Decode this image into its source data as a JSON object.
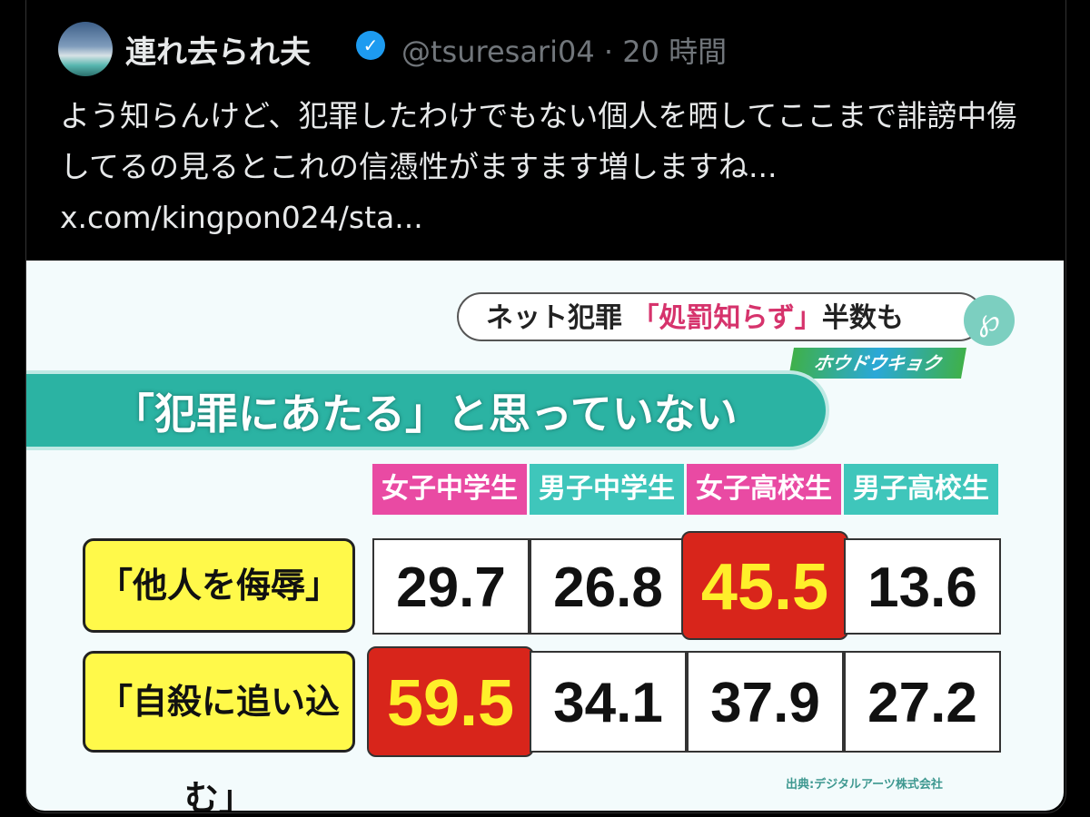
{
  "tweet": {
    "display_name": "連れ去られ夫",
    "verified_icon": "verified-badge-icon",
    "handle": "@tsuresari04",
    "separator": "·",
    "time": "20 時間",
    "text": "よう知らんけど、犯罪したわけでもない個人を晒してここまで誹謗中傷してるの見るとこれの信憑性がますます増しますね... x.com/kingpon024/sta..."
  },
  "image": {
    "headline_prefix": "ネット犯罪",
    "headline_highlight": "「処罰知らず」",
    "headline_suffix": "半数も",
    "logo_glyph": "℘",
    "program_name": "ホウドウキョク",
    "banner": "「犯罪にあたる」と思っていない",
    "columns": [
      "女子中学生",
      "男子中学生",
      "女子高校生",
      "男子高校生"
    ],
    "rows": [
      {
        "label": "「他人を侮辱」",
        "values": [
          "29.7",
          "26.8",
          "45.5",
          "13.6"
        ],
        "highlight_index": 2
      },
      {
        "label": "「自殺に追い込む」",
        "values": [
          "59.5",
          "34.1",
          "37.9",
          "27.2"
        ],
        "highlight_index": 0
      }
    ],
    "source": "出典:デジタルアーツ株式会社",
    "colors": {
      "pink": "#e94aa3",
      "teal": "#3fc6bb",
      "highlight": "#d8251b",
      "label_yellow": "#fff94a"
    }
  }
}
